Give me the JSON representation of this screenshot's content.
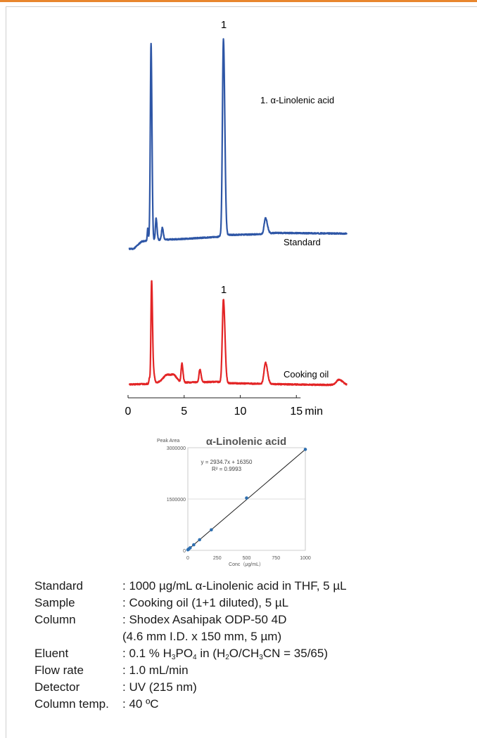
{
  "chart_data": [
    {
      "type": "line",
      "title": "",
      "xlabel": "",
      "x_unit_label": "min",
      "x_ticks": [
        "0",
        "5",
        "10",
        "15"
      ],
      "xlim": [
        0,
        19.5
      ],
      "peak_labels": [
        "1",
        "1"
      ],
      "legend_text": "1. α-Linolenic acid",
      "series": [
        {
          "name": "Standard",
          "color": "#2e56a6",
          "baseline": [
            [
              0.1,
              0.1
            ],
            [
              0.5,
              0.1
            ],
            [
              1.2,
              1.2
            ],
            [
              2,
              1.4
            ],
            [
              5,
              1.6
            ],
            [
              8,
              1.9
            ],
            [
              8.3,
              2.1
            ],
            [
              9,
              2.2
            ],
            [
              12,
              2.3
            ],
            [
              13,
              2.5
            ],
            [
              16,
              2.45
            ],
            [
              19.5,
              2.4
            ]
          ],
          "peaks": [
            {
              "rt": 1.75,
              "h": 1.8,
              "w": 0.04
            },
            {
              "rt": 1.95,
              "h": 2.0,
              "w": 0.05
            },
            {
              "rt": 2.05,
              "h": 29.0,
              "w": 0.06
            },
            {
              "rt": 2.5,
              "h": 3.3,
              "w": 0.06
            },
            {
              "rt": 3.05,
              "h": 1.8,
              "w": 0.07
            },
            {
              "rt": 8.5,
              "h": 29.5,
              "w": 0.09
            },
            {
              "rt": 12.25,
              "h": 2.4,
              "w": 0.12
            }
          ]
        },
        {
          "name": "Cooking oil",
          "color": "#e32526",
          "baseline": [
            [
              0.1,
              0.1
            ],
            [
              1.8,
              0.2
            ],
            [
              3.5,
              0.6
            ],
            [
              5,
              0.4
            ],
            [
              8,
              0.5
            ],
            [
              9,
              0.3
            ],
            [
              12,
              0.2
            ],
            [
              15,
              0.1
            ],
            [
              19.5,
              0.0
            ]
          ],
          "peaks": [
            {
              "rt": 1.9,
              "h": 0.8,
              "w": 0.04
            },
            {
              "rt": 2.1,
              "h": 15.5,
              "w": 0.06
            },
            {
              "rt": 2.3,
              "h": 1.2,
              "w": 0.06
            },
            {
              "rt": 3.5,
              "h": 1.0,
              "w": 0.35
            },
            {
              "rt": 4.1,
              "h": 0.6,
              "w": 0.2
            },
            {
              "rt": 4.8,
              "h": 2.8,
              "w": 0.07
            },
            {
              "rt": 6.4,
              "h": 1.9,
              "w": 0.08
            },
            {
              "rt": 8.5,
              "h": 12.5,
              "w": 0.1
            },
            {
              "rt": 12.25,
              "h": 3.2,
              "w": 0.13
            },
            {
              "rt": 18.8,
              "h": 0.8,
              "w": 0.25
            }
          ]
        }
      ]
    },
    {
      "type": "scatter",
      "title": "α-Linolenic acid",
      "ylabel": "Peak Area",
      "xlabel": "Conc（μg/mL）",
      "xlim": [
        0,
        1000
      ],
      "ylim": [
        0,
        3000000
      ],
      "x_ticks": [
        "0",
        "250",
        "500",
        "750",
        "1000"
      ],
      "y_ticks": [
        "0",
        "1500000",
        "3000000"
      ],
      "equation": "y = 2934.7x + 16350",
      "r_squared": "R² = 0.9993",
      "grid": true,
      "point_color": "#2e6fb0",
      "line_color": "#1a1a1a",
      "trendline": {
        "slope": 2934.7,
        "intercept": 16350
      },
      "x": [
        0,
        5,
        10,
        20,
        50,
        100,
        200,
        500,
        1000
      ],
      "y": [
        16350,
        31000,
        46000,
        75000,
        163000,
        310000,
        600000,
        1530000,
        2950000
      ]
    }
  ],
  "conditions": [
    {
      "label": "Standard",
      "value": ": 1000 µg/mL α-Linolenic acid in THF, 5 µL"
    },
    {
      "label": "Sample",
      "value": ": Cooking oil (1+1 diluted), 5 µL"
    },
    {
      "label": "Column",
      "value": ": Shodex Asahipak ODP-50 4D"
    },
    {
      "label": "",
      "value": " (4.6 mm I.D. x 150 mm, 5 µm)"
    },
    {
      "label": "Eluent",
      "value_parts": [
        ": 0.1 % H",
        "3",
        "PO",
        "4",
        " in (H",
        "2",
        "O/CH",
        "3",
        "CN = 35/65)"
      ]
    },
    {
      "label": "Flow rate",
      "value": ": 1.0 mL/min"
    },
    {
      "label": "Detector",
      "value": ": UV (215 nm)"
    },
    {
      "label": "Column temp.",
      "value": ": 40 ºC"
    }
  ]
}
